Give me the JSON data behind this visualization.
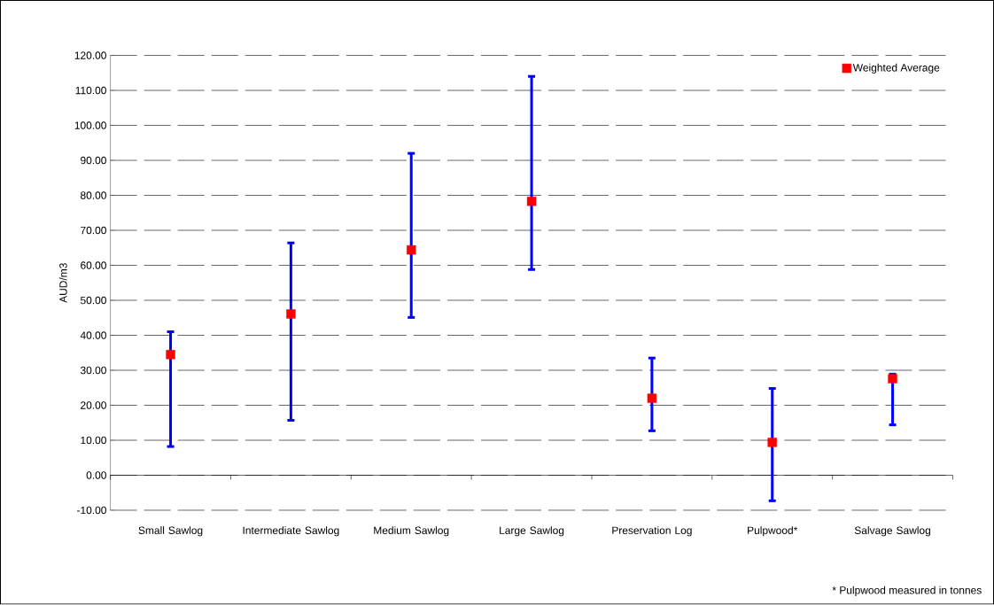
{
  "chart_data": {
    "type": "scatter",
    "ylabel": "AUD/m3",
    "categories": [
      "Small Sawlog",
      "Intermediate Sawlog",
      "Medium Sawlog",
      "Large Sawlog",
      "Preservation Log",
      "Pulpwood*",
      "Salvage Sawlog"
    ],
    "series": [
      {
        "name": "Weighted Average",
        "color": "#ff0000",
        "values": [
          34.5,
          46.1,
          64.4,
          78.3,
          22.0,
          9.4,
          27.6
        ],
        "errors": [
          [
            8.2,
            41.0
          ],
          [
            15.7,
            66.4
          ],
          [
            45.1,
            92.0
          ],
          [
            58.8,
            114.0
          ],
          [
            12.7,
            33.5
          ],
          [
            -7.3,
            24.8
          ],
          [
            14.4,
            28.9
          ]
        ]
      }
    ],
    "marker": "square",
    "ylim": [
      -10,
      120
    ],
    "yticks": [
      {
        "value": -10,
        "label": "-10.00"
      },
      {
        "value": 0,
        "label": "0.00"
      },
      {
        "value": 10,
        "label": "10.00"
      },
      {
        "value": 20,
        "label": "20.00"
      },
      {
        "value": 30,
        "label": "30.00"
      },
      {
        "value": 40,
        "label": "40.00"
      },
      {
        "value": 50,
        "label": "50.00"
      },
      {
        "value": 60,
        "label": "60.00"
      },
      {
        "value": 70,
        "label": "70.00"
      },
      {
        "value": 80,
        "label": "80.00"
      },
      {
        "value": 90,
        "label": "90.00"
      },
      {
        "value": 100,
        "label": "100.00"
      },
      {
        "value": 110,
        "label": "110.00"
      },
      {
        "value": 120,
        "label": "120.00"
      }
    ],
    "grid": "y",
    "legend": "top right",
    "annotations": [
      "* Pulpwood measured in tonnes"
    ]
  }
}
